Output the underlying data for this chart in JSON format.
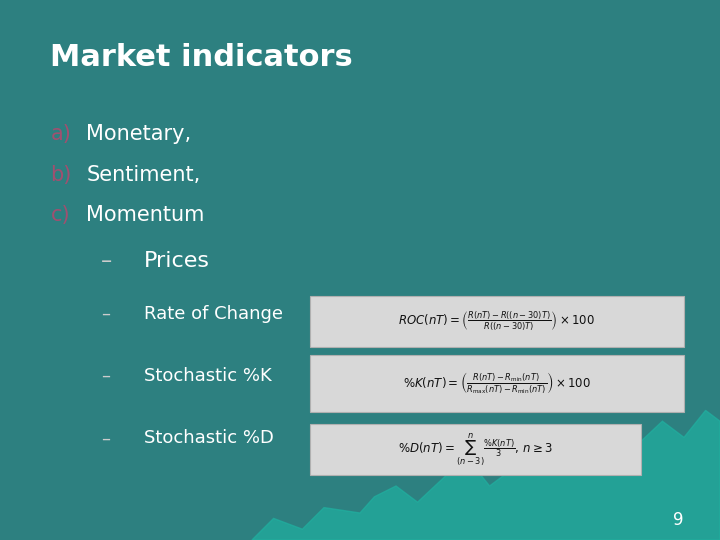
{
  "title": "Market indicators",
  "title_color": "#ffffff",
  "title_fontsize": 22,
  "bg_color_top": "#2d8080",
  "bg_color_bottom": "#1a6060",
  "label_a_color": "#a05070",
  "label_b_color": "#a05070",
  "label_c_color": "#a05070",
  "text_color": "#ffffff",
  "dash_color": "#cccccc",
  "formula_bg": "#d8d8d8",
  "items_abc": [
    {
      "label": "a)",
      "text": "Monetary,"
    },
    {
      "label": "b)",
      "text": "Sentiment,"
    },
    {
      "label": "c)",
      "text": "Momentum"
    }
  ],
  "sub_items": [
    {
      "dash": "–",
      "text": "Prices",
      "fontsize": 16,
      "has_formula": false
    },
    {
      "dash": "–",
      "text": "Rate of Change",
      "fontsize": 13,
      "has_formula": true,
      "formula": "ROC(nT) = \\left(\\frac{R(nT)-R((n-30)T)}{R((n-30)T)}\\right)\\times 100"
    },
    {
      "dash": "–",
      "text": "Stochastic %K",
      "fontsize": 13,
      "has_formula": true,
      "formula": "\\%%K(nT) = \\left(\\frac{R(nT)-R_{\\min}(nT)}{R_{\\max}(nT)-R_{\\min}(nT)}\\right)\\times 100"
    },
    {
      "dash": "–",
      "text": "Stochastic %D",
      "fontsize": 13,
      "has_formula": true,
      "formula": "\\%%D(nT) = \\sum_{(n-3)}^{n}\\frac{\\%%K(nT)}{3},\\, n\\geq 3"
    }
  ],
  "page_number": "9",
  "mountain_color": "#20b0a0"
}
